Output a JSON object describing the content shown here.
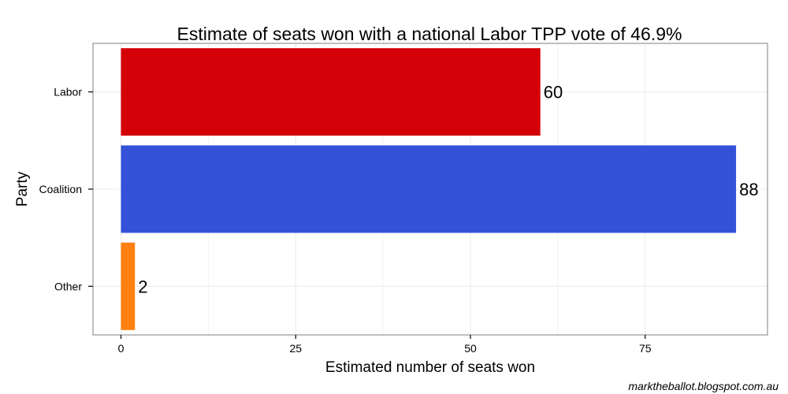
{
  "chart_data": {
    "type": "bar",
    "orientation": "horizontal",
    "title": "Estimate of seats won with a national Labor TPP vote of 46.9%",
    "xlabel": "Estimated number of seats won",
    "ylabel": "Party",
    "categories": [
      "Labor",
      "Coalition",
      "Other"
    ],
    "values": [
      60,
      88,
      2
    ],
    "data_labels": [
      "60",
      "88",
      "2"
    ],
    "colors": [
      "#d30007",
      "#3352d8",
      "#ff800e"
    ],
    "xlim": [
      -4,
      92.5
    ],
    "xticks": [
      0,
      25,
      50,
      75
    ],
    "xtick_labels": [
      "0",
      "25",
      "50",
      "75"
    ],
    "grid": true,
    "legend": "none"
  },
  "credit": "marktheballot.blogspot.com.au"
}
